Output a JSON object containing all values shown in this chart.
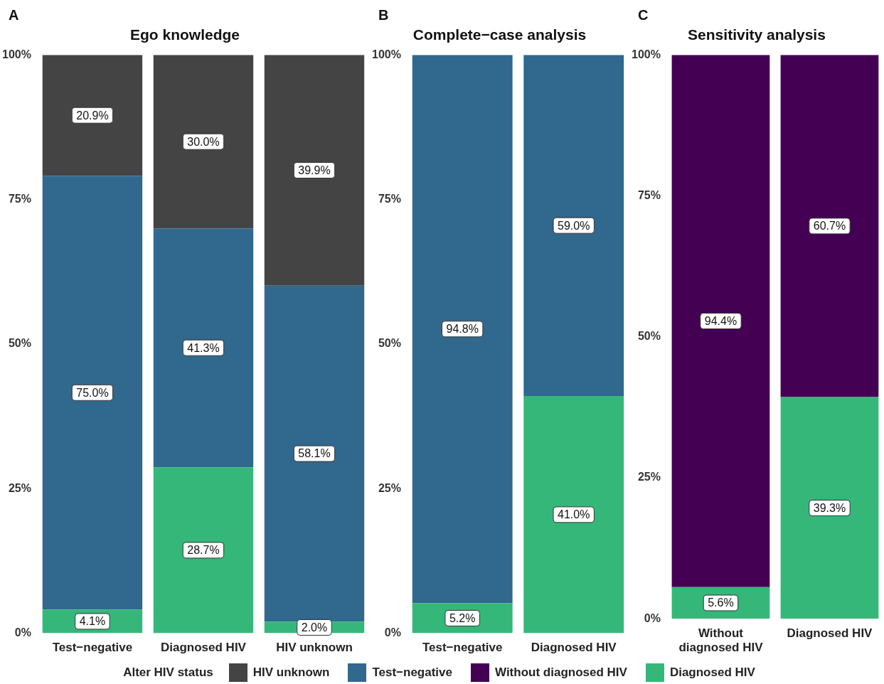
{
  "chart_data": [
    {
      "type": "bar",
      "title": "Ego knowledge",
      "annotations": [
        "A"
      ],
      "legend_title": "Alter HIV status",
      "legend": "bottom",
      "stacked": true,
      "grid": false,
      "data_labels": true,
      "categories": [
        "Test−negative",
        "Diagnosed HIV",
        "HIV unknown"
      ],
      "ylim": [
        0,
        100
      ],
      "yticks": [
        {
          "value": 0,
          "label": "0%"
        },
        {
          "value": 25,
          "label": "25%"
        },
        {
          "value": 50,
          "label": "50%"
        },
        {
          "value": 75,
          "label": "75%"
        },
        {
          "value": 100,
          "label": "100%"
        }
      ],
      "series": [
        {
          "name": "Diagnosed HIV",
          "color": "#35b779",
          "values": [
            4.1,
            28.7,
            2.0
          ],
          "value_labels": [
            "4.1%",
            "28.7%",
            "2.0%"
          ]
        },
        {
          "name": "Test−negative",
          "color": "#31688e",
          "values": [
            75.0,
            41.3,
            58.1
          ],
          "value_labels": [
            "75.0%",
            "41.3%",
            "58.1%"
          ]
        },
        {
          "name": "HIV unknown",
          "color": "#444444",
          "values": [
            20.9,
            30.0,
            39.9
          ],
          "value_labels": [
            "20.9%",
            "30.0%",
            "39.9%"
          ]
        }
      ]
    },
    {
      "type": "bar",
      "title": "Complete−case analysis",
      "annotations": [
        "B"
      ],
      "legend": "bottom",
      "stacked": true,
      "grid": false,
      "data_labels": true,
      "categories": [
        "Test−negative",
        "Diagnosed HIV"
      ],
      "ylim": [
        0,
        100
      ],
      "yticks": [
        {
          "value": 0,
          "label": "0%"
        },
        {
          "value": 25,
          "label": "25%"
        },
        {
          "value": 50,
          "label": "50%"
        },
        {
          "value": 75,
          "label": "75%"
        },
        {
          "value": 100,
          "label": "100%"
        }
      ],
      "series": [
        {
          "name": "Diagnosed HIV",
          "color": "#35b779",
          "values": [
            5.2,
            41.0
          ],
          "value_labels": [
            "5.2%",
            "41.0%"
          ]
        },
        {
          "name": "Test−negative",
          "color": "#31688e",
          "values": [
            94.8,
            59.0
          ],
          "value_labels": [
            "94.8%",
            "59.0%"
          ]
        }
      ]
    },
    {
      "type": "bar",
      "title": "Sensitivity analysis",
      "annotations": [
        "C"
      ],
      "legend": "bottom",
      "stacked": true,
      "grid": false,
      "data_labels": true,
      "categories": [
        "Without diagnosed HIV",
        "Diagnosed HIV"
      ],
      "ylim": [
        0,
        100
      ],
      "yticks": [
        {
          "value": 0,
          "label": "0%"
        },
        {
          "value": 25,
          "label": "25%"
        },
        {
          "value": 50,
          "label": "50%"
        },
        {
          "value": 75,
          "label": "75%"
        },
        {
          "value": 100,
          "label": "100%"
        }
      ],
      "series": [
        {
          "name": "Diagnosed HIV",
          "color": "#35b779",
          "values": [
            5.6,
            39.3
          ],
          "value_labels": [
            "5.6%",
            "39.3%"
          ]
        },
        {
          "name": "Without diagnosed HIV",
          "color": "#440154",
          "values": [
            94.4,
            60.7
          ],
          "value_labels": [
            "94.4%",
            "60.7%"
          ]
        }
      ]
    }
  ]
}
